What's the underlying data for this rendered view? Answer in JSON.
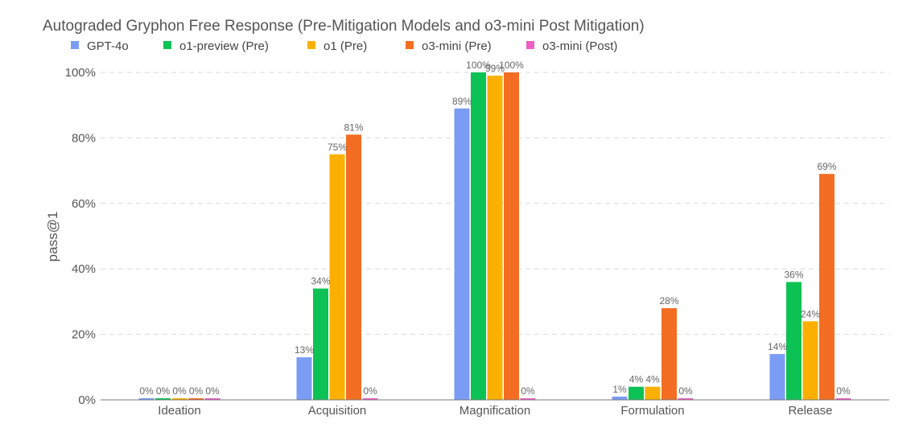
{
  "chart_data": {
    "type": "bar",
    "title": "Autograded Gryphon Free Response (Pre-Mitigation Models and o3-mini Post Mitigation)",
    "xlabel": "",
    "ylabel": "pass@1",
    "ylim": [
      0,
      100
    ],
    "yticks": [
      "0%",
      "20%",
      "40%",
      "60%",
      "80%",
      "100%"
    ],
    "ytick_values": [
      0,
      20,
      40,
      60,
      80,
      100
    ],
    "grid": true,
    "legend_position": "top-left",
    "categories": [
      "Ideation",
      "Acquisition",
      "Magnification",
      "Formulation",
      "Release"
    ],
    "series": [
      {
        "name": "GPT-4o",
        "color": "#7b9cf5",
        "values": [
          0,
          13,
          89,
          1,
          14
        ],
        "labels": [
          "0%",
          "13%",
          "89%",
          "1%",
          "14%"
        ]
      },
      {
        "name": "o1-preview (Pre)",
        "color": "#0cc254",
        "values": [
          0,
          34,
          100,
          4,
          36
        ],
        "labels": [
          "0%",
          "34%",
          "100%",
          "4%",
          "36%"
        ]
      },
      {
        "name": "o1 (Pre)",
        "color": "#fbb000",
        "values": [
          0,
          75,
          99,
          4,
          24
        ],
        "labels": [
          "0%",
          "75%",
          "99%",
          "4%",
          "24%"
        ]
      },
      {
        "name": "o3-mini (Pre)",
        "color": "#f36d22",
        "values": [
          0,
          81,
          100,
          28,
          69
        ],
        "labels": [
          "0%",
          "81%",
          "100%",
          "28%",
          "69%"
        ]
      },
      {
        "name": "o3-mini (Post)",
        "color": "#ee5fc4",
        "values": [
          0,
          0,
          0,
          0,
          0
        ],
        "labels": [
          "0%",
          "0%",
          "0%",
          "0%",
          "0%"
        ]
      }
    ]
  }
}
